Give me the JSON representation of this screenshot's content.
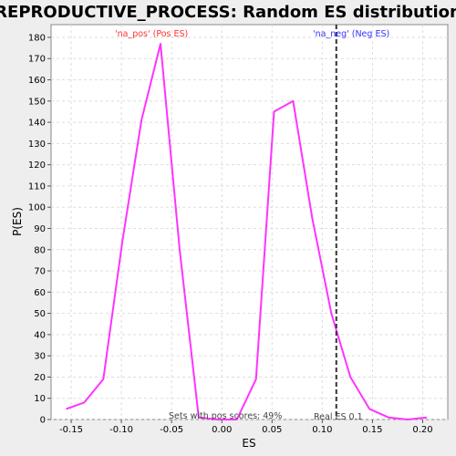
{
  "chart_data": {
    "type": "line",
    "title": "REPRODUCTIVE_PROCESS: Random ES distribution",
    "xlabel": "ES",
    "ylabel": "P(ES)",
    "xlim": [
      -0.17,
      0.225
    ],
    "ylim": [
      0,
      186
    ],
    "x_ticks": [
      -0.15,
      -0.1,
      -0.05,
      0.0,
      0.05,
      0.1,
      0.15,
      0.2
    ],
    "x_tick_labels": [
      "-0.15",
      "-0.10",
      "-0.05",
      "0.00",
      "0.05",
      "0.10",
      "0.15",
      "0.20"
    ],
    "y_ticks": [
      0,
      10,
      20,
      30,
      40,
      50,
      60,
      70,
      80,
      90,
      100,
      110,
      120,
      130,
      140,
      150,
      160,
      170,
      180
    ],
    "grid": true,
    "series": [
      {
        "color": "#ff33ff",
        "x": [
          -0.155,
          -0.137,
          -0.118,
          -0.099,
          -0.08,
          -0.061,
          -0.042,
          -0.023,
          -0.004,
          0.015,
          0.034,
          0.052,
          0.071,
          0.09,
          0.109,
          0.128,
          0.147,
          0.166,
          0.185,
          0.204
        ],
        "y": [
          5,
          8,
          19,
          84,
          141,
          177,
          80,
          1,
          0,
          0,
          19,
          145,
          150,
          95,
          50,
          20,
          5,
          1,
          0,
          1
        ]
      }
    ],
    "real_es": {
      "x": 0.114,
      "label": "Real ES 0.1",
      "color": "#333333"
    },
    "annotations": {
      "pos_label": "'na_pos' (Pos ES)",
      "pos_color": "#ff3333",
      "neg_label": "'na_neg' (Neg ES)",
      "neg_color": "#3333ff",
      "sets_with_pos": "Sets with pos scores: 49%"
    }
  }
}
